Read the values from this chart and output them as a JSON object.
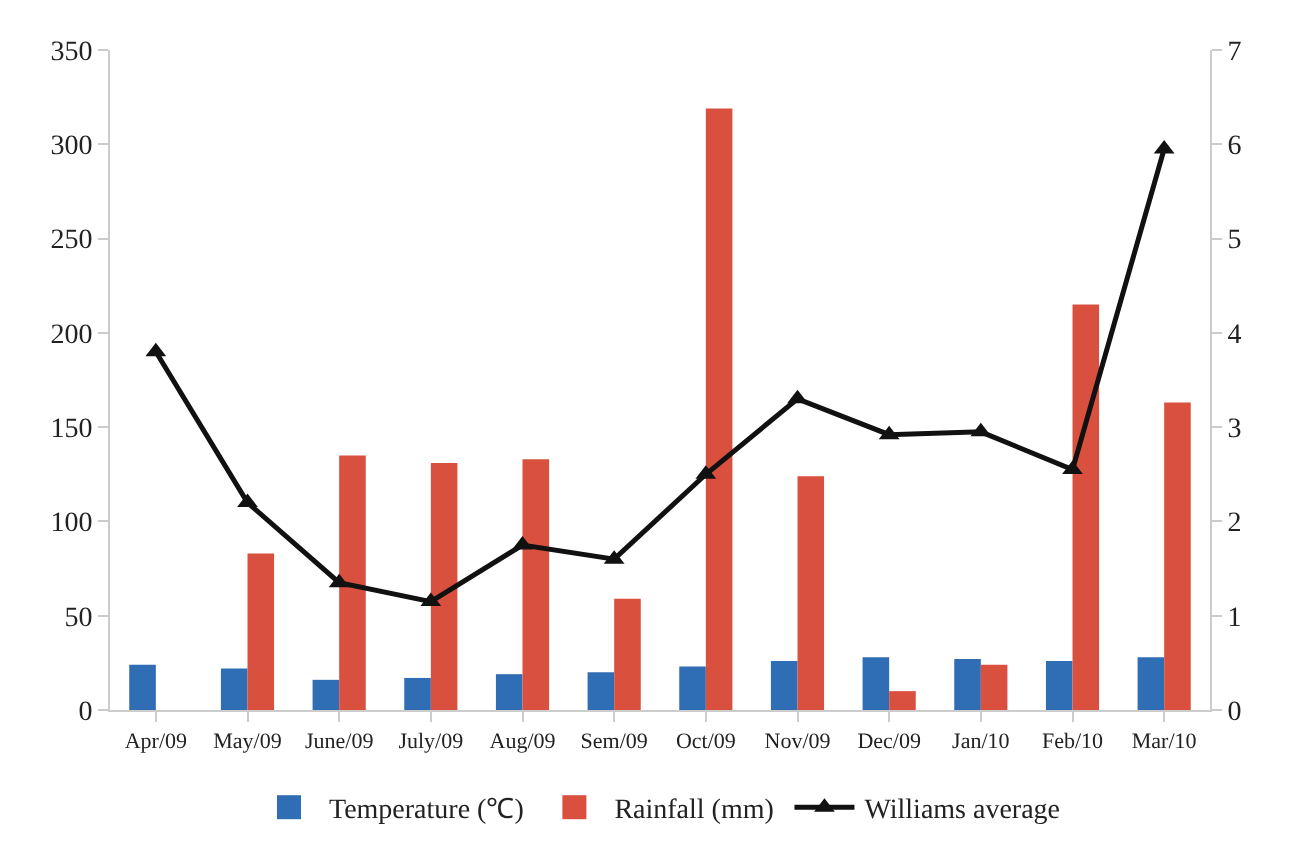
{
  "chart_data": {
    "type": "bar",
    "categories": [
      "Apr/09",
      "May/09",
      "June/09",
      "July/09",
      "Aug/09",
      "Sem/09",
      "Oct/09",
      "Nov/09",
      "Dec/09",
      "Jan/10",
      "Feb/10",
      "Mar/10"
    ],
    "series": [
      {
        "name": "Temperature (℃)",
        "color": "#2f6db5",
        "values": [
          24,
          22,
          16,
          17,
          19,
          20,
          23,
          26,
          28,
          27,
          26,
          28
        ]
      },
      {
        "name": "Rainfall (mm)",
        "color": "#d9503f",
        "values": [
          0,
          83,
          135,
          131,
          133,
          59,
          319,
          124,
          10,
          24,
          215,
          163
        ]
      },
      {
        "name": "Williams average",
        "type": "line",
        "axis": "y2",
        "color": "#111111",
        "marker": "triangle",
        "values": [
          3.8,
          2.2,
          1.35,
          1.15,
          1.75,
          1.6,
          2.5,
          3.3,
          2.92,
          2.95,
          2.55,
          5.95
        ]
      }
    ],
    "ylim": [
      0,
      350
    ],
    "yticks": [
      0,
      50,
      100,
      150,
      200,
      250,
      300,
      350
    ],
    "y2lim": [
      0,
      7
    ],
    "y2ticks": [
      0,
      1,
      2,
      3,
      4,
      5,
      6,
      7
    ],
    "grid": false,
    "legend": "bottom"
  }
}
